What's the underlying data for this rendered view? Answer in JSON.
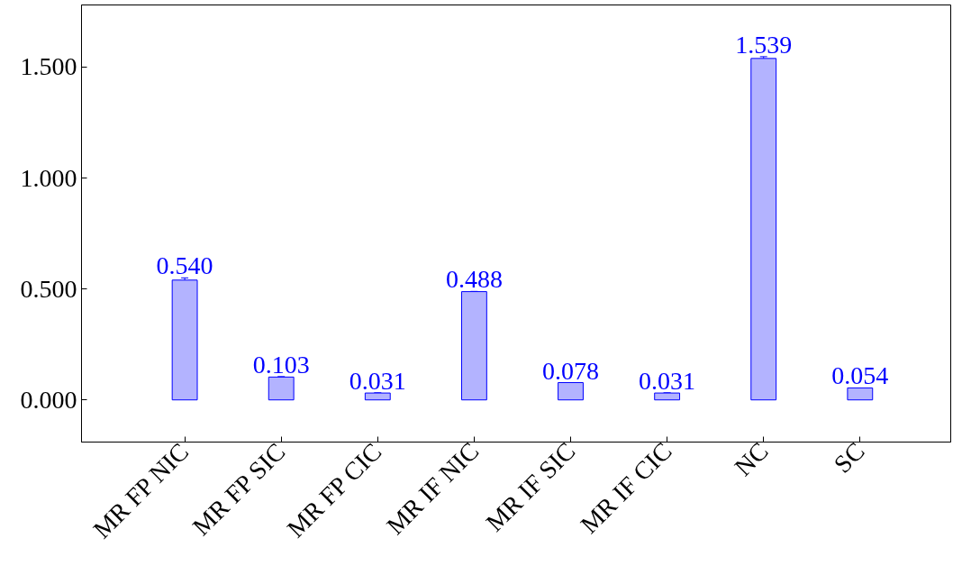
{
  "chart_data": {
    "type": "bar",
    "categories": [
      "MR FP NIC",
      "MR FP SIC",
      "MR FP CIC",
      "MR IF NIC",
      "MR IF SIC",
      "MR IF CIC",
      "NC",
      "SC"
    ],
    "values": [
      0.54,
      0.103,
      0.031,
      0.488,
      0.078,
      0.031,
      1.539,
      0.054
    ],
    "errors": [
      0.01,
      0.002,
      0.001,
      0.001,
      null,
      0.001,
      0.008,
      null
    ],
    "color": "#b3b3ff",
    "value_labels": [
      "0.540",
      "0.103",
      "0.031",
      "0.488",
      "0.078",
      "0.031",
      "1.539",
      "0.054"
    ],
    "ylim": [
      -0.19,
      1.78
    ],
    "yticks": [
      {
        "value": 0,
        "label": "0.000"
      },
      {
        "value": 0.5,
        "label": "0.500"
      },
      {
        "value": 1,
        "label": "1.000"
      },
      {
        "value": 1.5,
        "label": "1.500"
      }
    ],
    "grid": false
  }
}
